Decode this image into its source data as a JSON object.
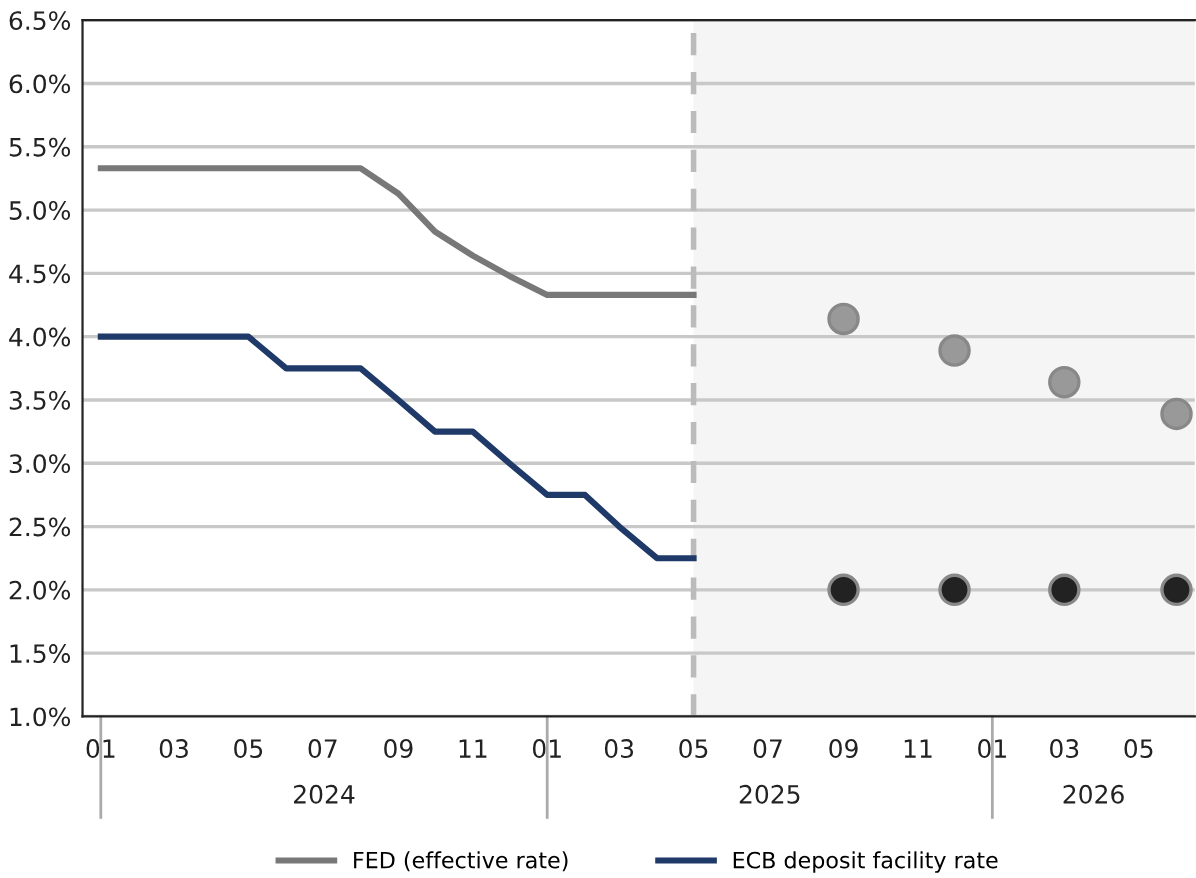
{
  "chart_data": {
    "type": "line",
    "x": [
      "2024-01",
      "2024-02",
      "2024-03",
      "2024-04",
      "2024-05",
      "2024-06",
      "2024-07",
      "2024-08",
      "2024-09",
      "2024-10",
      "2024-11",
      "2024-12",
      "2025-01",
      "2025-02",
      "2025-03",
      "2025-04",
      "2025-05"
    ],
    "series": [
      {
        "name": "FED (effective rate)",
        "color": "#787878",
        "values": [
          5.33,
          5.33,
          5.33,
          5.33,
          5.33,
          5.33,
          5.33,
          5.33,
          5.13,
          4.83,
          4.64,
          4.48,
          4.33,
          4.33,
          4.33,
          4.33,
          4.33
        ]
      },
      {
        "name": "ECB deposit facility rate",
        "color": "#1f3a68",
        "values": [
          4.0,
          4.0,
          4.0,
          4.0,
          4.0,
          3.75,
          3.75,
          3.75,
          3.5,
          3.25,
          3.25,
          3.0,
          2.75,
          2.75,
          2.5,
          2.25,
          2.25
        ]
      },
      {
        "type": "scatter",
        "color": "#999999",
        "marker": "circle",
        "x": [
          "2025-09",
          "2025-12",
          "2026-03",
          "2026-06"
        ],
        "values": [
          4.14,
          3.89,
          3.64,
          3.39
        ]
      },
      {
        "type": "scatter",
        "color": "#222222",
        "marker": "circle",
        "x": [
          "2025-09",
          "2025-12",
          "2026-03",
          "2026-06"
        ],
        "values": [
          2.0,
          2.0,
          2.0,
          2.0
        ]
      }
    ],
    "xlim": [
      "2023-12-17",
      "2026-06-16"
    ],
    "xticks": [
      {
        "value": "2024-01",
        "label": "01"
      },
      {
        "value": "2024-03",
        "label": "03"
      },
      {
        "value": "2024-05",
        "label": "05"
      },
      {
        "value": "2024-07",
        "label": "07"
      },
      {
        "value": "2024-09",
        "label": "09"
      },
      {
        "value": "2024-11",
        "label": "11"
      },
      {
        "value": "2025-01",
        "label": "01"
      },
      {
        "value": "2025-03",
        "label": "03"
      },
      {
        "value": "2025-05",
        "label": "05"
      },
      {
        "value": "2025-07",
        "label": "07"
      },
      {
        "value": "2025-09",
        "label": "09"
      },
      {
        "value": "2025-11",
        "label": "11"
      },
      {
        "value": "2026-01",
        "label": "01"
      },
      {
        "value": "2026-03",
        "label": "03"
      },
      {
        "value": "2026-05",
        "label": "05"
      }
    ],
    "ylim": [
      1.0,
      6.5
    ],
    "yticks": [
      {
        "value": 1.0,
        "label": "1.0%"
      },
      {
        "value": 1.5,
        "label": "1.5%"
      },
      {
        "value": 2.0,
        "label": "2.0%"
      },
      {
        "value": 2.5,
        "label": "2.5%"
      },
      {
        "value": 3.0,
        "label": "3.0%"
      },
      {
        "value": 3.5,
        "label": "3.5%"
      },
      {
        "value": 4.0,
        "label": "4.0%"
      },
      {
        "value": 4.5,
        "label": "4.5%"
      },
      {
        "value": 5.0,
        "label": "5.0%"
      },
      {
        "value": 5.5,
        "label": "5.5%"
      },
      {
        "value": 6.0,
        "label": "6.0%"
      },
      {
        "value": 6.5,
        "label": "6.5%"
      }
    ],
    "annotations": [
      "2024",
      "2025",
      "2026"
    ],
    "ref_lines": [
      {
        "axis": "x",
        "value": "2025-05",
        "color": "#bbbbbb",
        "line_style": "dashed"
      }
    ],
    "bands": [
      {
        "axis": "x",
        "from": "2025-05",
        "to": "2026-06-16",
        "color": "#f5f5f5"
      }
    ],
    "grid": "y",
    "legend": "bottom",
    "line_style": "solid"
  }
}
